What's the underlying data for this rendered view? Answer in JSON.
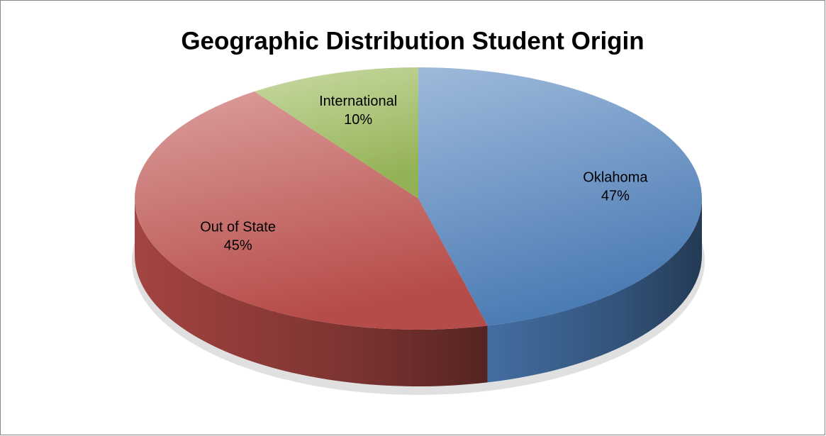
{
  "chart_data": {
    "type": "pie",
    "title": "Geographic Distribution Student Origin",
    "categories": [
      "Oklahoma",
      "Out of State",
      "International"
    ],
    "values": [
      47,
      45,
      10
    ],
    "value_labels": [
      "47%",
      "45%",
      "10%"
    ],
    "colors": [
      "#4f81bd",
      "#c0504d",
      "#9bbb59"
    ]
  }
}
